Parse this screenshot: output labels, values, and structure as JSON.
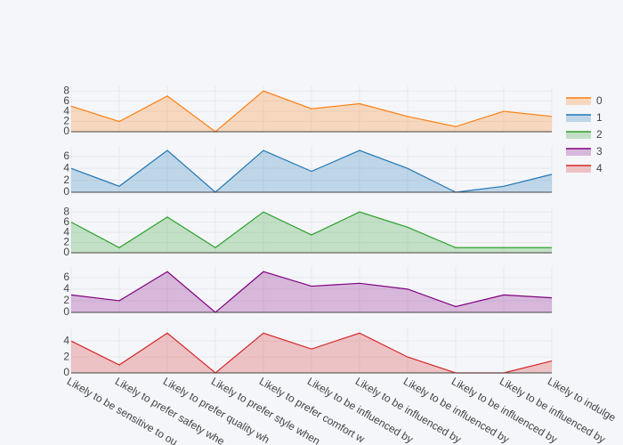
{
  "chart_data": {
    "type": "area",
    "categories": [
      "Likely to be sensitive to ou",
      "Likely to prefer safety whe",
      "Likely to prefer quality wh",
      "Likely to prefer style when",
      "Likely to prefer comfort w",
      "Likely to be influenced by",
      "Likely to be influenced by",
      "Likely to be influenced by",
      "Likely to be influenced by",
      "Likely to be influenced by",
      "Likely to indulge"
    ],
    "grid": true,
    "series": [
      {
        "name": "0",
        "color": "#ff7f0e",
        "values": [
          5,
          2,
          7,
          0,
          8,
          4.5,
          5.5,
          3,
          1,
          4,
          3
        ],
        "ylim": [
          0,
          8.9
        ],
        "yticks": [
          0,
          2,
          4,
          6,
          8
        ]
      },
      {
        "name": "1",
        "color": "#1f77b4",
        "values": [
          4,
          1,
          7,
          0,
          7,
          3.5,
          7,
          4,
          0,
          1,
          3
        ],
        "ylim": [
          0,
          7.6
        ],
        "yticks": [
          0,
          2,
          4,
          6
        ]
      },
      {
        "name": "2",
        "color": "#2ca02c",
        "values": [
          6,
          1,
          7,
          1,
          8,
          3.5,
          8,
          5,
          1,
          1,
          1
        ],
        "ylim": [
          0,
          8.9
        ],
        "yticks": [
          0,
          2,
          4,
          6,
          8
        ]
      },
      {
        "name": "3",
        "color": "#800080",
        "values": [
          3,
          2,
          7,
          0,
          7,
          4.5,
          5,
          4,
          1,
          3,
          2.5
        ],
        "ylim": [
          0,
          7.8
        ],
        "yticks": [
          0,
          2,
          4,
          6
        ]
      },
      {
        "name": "4",
        "color": "#d62728",
        "values": [
          4,
          1,
          5,
          0,
          5,
          3,
          5,
          2,
          0,
          0,
          1.5
        ],
        "ylim": [
          0,
          5.7
        ],
        "yticks": [
          0,
          2,
          4
        ]
      }
    ]
  }
}
